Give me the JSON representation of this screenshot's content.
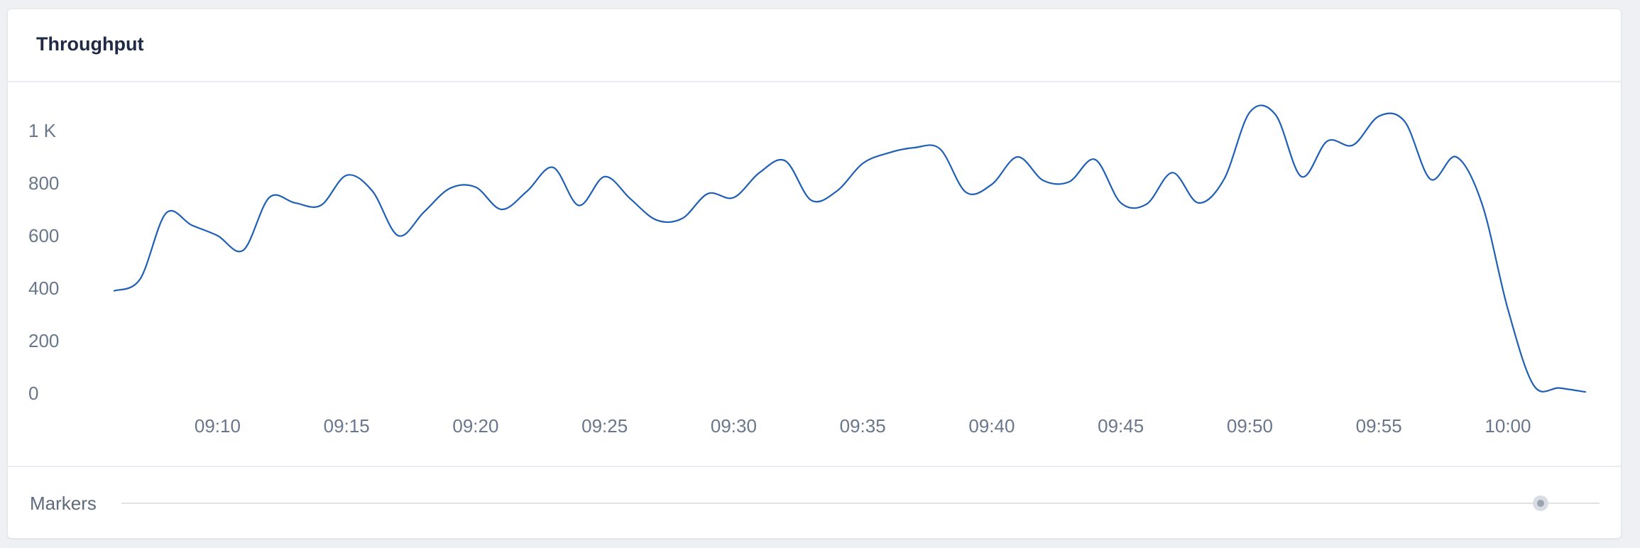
{
  "panel": {
    "title": "Throughput"
  },
  "footer": {
    "markers_label": "Markers",
    "markers_position": 0.96
  },
  "colors": {
    "series": "#1f5fb5",
    "tick_text": "#69778c",
    "title": "#1f2a44"
  },
  "chart_data": {
    "type": "line",
    "title": "Throughput",
    "xlabel": "",
    "ylabel": "",
    "grid": false,
    "legend": "none",
    "y_ticks": [
      {
        "value": 0,
        "label": "0"
      },
      {
        "value": 200,
        "label": "200"
      },
      {
        "value": 400,
        "label": "400"
      },
      {
        "value": 600,
        "label": "600"
      },
      {
        "value": 800,
        "label": "800"
      },
      {
        "value": 1000,
        "label": "1 K"
      }
    ],
    "x_ticks": [
      {
        "value": "09:10",
        "label": "09:10"
      },
      {
        "value": "09:15",
        "label": "09:15"
      },
      {
        "value": "09:20",
        "label": "09:20"
      },
      {
        "value": "09:25",
        "label": "09:25"
      },
      {
        "value": "09:30",
        "label": "09:30"
      },
      {
        "value": "09:35",
        "label": "09:35"
      },
      {
        "value": "09:40",
        "label": "09:40"
      },
      {
        "value": "09:45",
        "label": "09:45"
      },
      {
        "value": "09:50",
        "label": "09:50"
      },
      {
        "value": "09:55",
        "label": "09:55"
      },
      {
        "value": "10:00",
        "label": "10:00"
      }
    ],
    "xlim": [
      "09:06:00",
      "10:03:00"
    ],
    "ylim": [
      0,
      1000
    ],
    "series": [
      {
        "x": [
          "09:06:00",
          "09:07:00",
          "09:08:00",
          "09:09:00",
          "09:10:00",
          "09:11:00",
          "09:12:00",
          "09:13:00",
          "09:14:00",
          "09:15:00",
          "09:16:00",
          "09:17:00",
          "09:18:00",
          "09:19:00",
          "09:20:00",
          "09:21:00",
          "09:22:00",
          "09:23:00",
          "09:24:00",
          "09:25:00",
          "09:26:00",
          "09:27:00",
          "09:28:00",
          "09:29:00",
          "09:30:00",
          "09:31:00",
          "09:32:00",
          "09:33:00",
          "09:34:00",
          "09:35:00",
          "09:36:00",
          "09:37:00",
          "09:38:00",
          "09:39:00",
          "09:40:00",
          "09:41:00",
          "09:42:00",
          "09:43:00",
          "09:44:00",
          "09:45:00",
          "09:46:00",
          "09:47:00",
          "09:48:00",
          "09:49:00",
          "09:50:00",
          "09:51:00",
          "09:52:00",
          "09:53:00",
          "09:54:00",
          "09:55:00",
          "09:56:00",
          "09:57:00",
          "09:58:00",
          "09:59:00",
          "10:00:00",
          "10:01:00",
          "10:02:00",
          "10:03:00"
        ],
        "values": [
          390,
          435,
          685,
          640,
          600,
          545,
          745,
          725,
          715,
          830,
          770,
          600,
          690,
          780,
          785,
          700,
          770,
          860,
          715,
          825,
          740,
          660,
          665,
          760,
          745,
          840,
          885,
          735,
          770,
          875,
          915,
          935,
          930,
          765,
          795,
          900,
          810,
          805,
          890,
          725,
          720,
          840,
          725,
          815,
          1070,
          1060,
          825,
          960,
          945,
          1055,
          1035,
          815,
          900,
          720,
          320,
          30,
          20,
          5
        ]
      }
    ]
  }
}
